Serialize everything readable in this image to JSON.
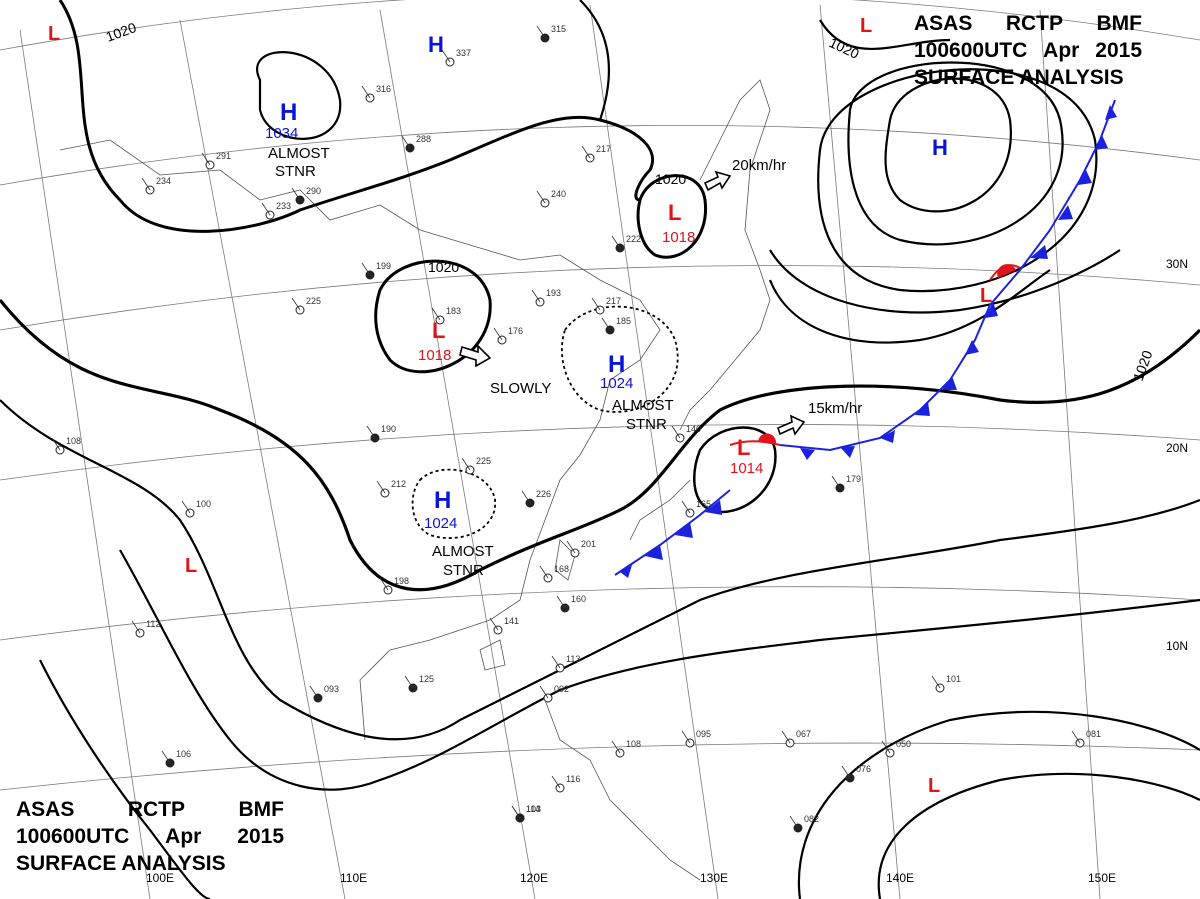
{
  "header": {
    "line1": [
      "ASAS",
      "RCTP",
      "BMF"
    ],
    "line2": [
      "100600UTC",
      "Apr",
      "2015"
    ],
    "line3": "SURFACE ANALYSIS"
  },
  "colors": {
    "high": "#0a14d6",
    "low": "#e0141a",
    "isobar": "#000000",
    "cold_front": "#1a22e0",
    "warm_front": "#e0141a",
    "grid": "#6a6a6a",
    "coast": "#555555"
  },
  "systems": [
    {
      "type": "H",
      "pressure": "1034",
      "note": "ALMOST STNR"
    },
    {
      "type": "H",
      "pressure": "1024",
      "note": "ALMOST STNR"
    },
    {
      "type": "H",
      "pressure": "1024",
      "note": "ALMOST STNR"
    },
    {
      "type": "L",
      "pressure": "1018",
      "note": "SLOWLY"
    },
    {
      "type": "L",
      "pressure": "1018",
      "note": "20km/hr"
    },
    {
      "type": "L",
      "pressure": "1014",
      "note": "15km/hr"
    }
  ],
  "isobar_labels": [
    "1020",
    "1020",
    "1020",
    "1020",
    "1020"
  ],
  "latitude_labels": [
    "30N",
    "20N",
    "10N"
  ],
  "longitude_labels": [
    "100E",
    "110E",
    "120E",
    "130E",
    "140E",
    "150E"
  ],
  "station_values": [
    "315",
    "337",
    "316",
    "288",
    "240",
    "217",
    "222",
    "193",
    "217",
    "185",
    "176",
    "183",
    "199",
    "225",
    "233",
    "290",
    "291",
    "234",
    "190",
    "212",
    "225",
    "226",
    "201",
    "168",
    "160",
    "165",
    "140",
    "179",
    "198",
    "141",
    "125",
    "113",
    "092",
    "093",
    "108",
    "116",
    "103",
    "095",
    "067",
    "076",
    "050",
    "081",
    "082",
    "101",
    "112",
    "106",
    "100",
    "108",
    "114"
  ]
}
